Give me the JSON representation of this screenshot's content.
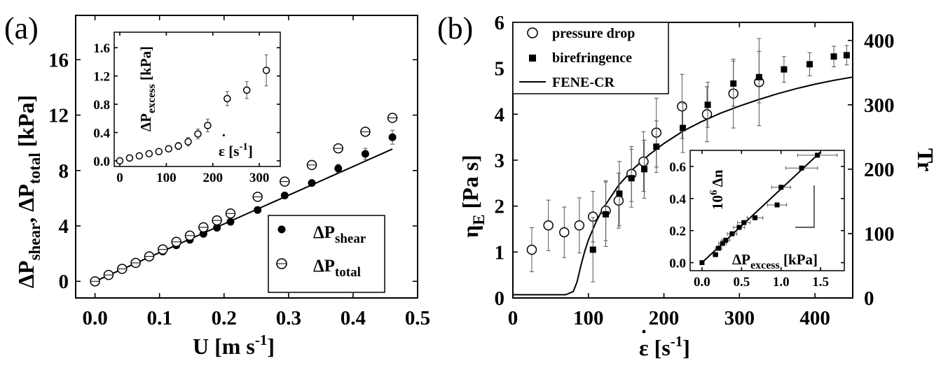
{
  "chart_data": [
    {
      "id": "a",
      "type": "scatter",
      "panel_label": "(a)",
      "xlabel": {
        "main": "U [m s",
        "sup": "-1",
        "end": "]"
      },
      "ylabel": {
        "p1": "ΔP",
        "s1": "shear",
        "p2": ", ΔP",
        "s2": "total",
        "p3": " [kPa]"
      },
      "xlim": [
        -0.03,
        0.5
      ],
      "ylim": [
        -1.2,
        19.2
      ],
      "xticks": [
        "0.0",
        "0.1",
        "0.2",
        "0.3",
        "0.4",
        "0.5"
      ],
      "yticks": [
        "0",
        "4",
        "8",
        "12",
        "16"
      ],
      "legend_position": "bottom-right",
      "series": [
        {
          "name": {
            "p": "ΔP",
            "s": "shear"
          },
          "marker": "filled-circle",
          "x": [
            0.0,
            0.021,
            0.042,
            0.063,
            0.084,
            0.105,
            0.126,
            0.147,
            0.168,
            0.189,
            0.21,
            0.252,
            0.294,
            0.336,
            0.377,
            0.419,
            0.461
          ],
          "y": [
            0.0,
            0.44,
            0.87,
            1.3,
            1.73,
            2.15,
            2.6,
            3.0,
            3.43,
            3.87,
            4.3,
            5.15,
            6.2,
            7.1,
            8.15,
            9.2,
            10.4
          ],
          "yerr": [
            0,
            0,
            0,
            0,
            0,
            0,
            0,
            0,
            0,
            0,
            0,
            0,
            0,
            0,
            0.3,
            0.4,
            0.5
          ]
        },
        {
          "name": {
            "p": "ΔP",
            "s": "total"
          },
          "marker": "open-circle",
          "x": [
            0.0,
            0.021,
            0.042,
            0.063,
            0.084,
            0.105,
            0.126,
            0.147,
            0.168,
            0.189,
            0.21,
            0.252,
            0.294,
            0.336,
            0.377,
            0.419,
            0.461
          ],
          "y": [
            0.0,
            0.46,
            0.9,
            1.33,
            1.8,
            2.3,
            2.85,
            3.3,
            3.9,
            4.4,
            4.9,
            6.1,
            7.2,
            8.4,
            9.6,
            10.8,
            11.8
          ],
          "yerr": [
            0,
            0,
            0,
            0,
            0,
            0,
            0,
            0,
            0,
            0,
            0,
            0,
            0,
            0,
            0,
            0,
            0
          ]
        }
      ],
      "fit_line": {
        "x": [
          0.0,
          0.461
        ],
        "y": [
          0.0,
          9.55
        ]
      },
      "inset": {
        "type": "scatter",
        "xlabel": {
          "main": "ε [s",
          "sup": "-1",
          "end": "]"
        },
        "ylabel": {
          "p1": "ΔP",
          "s1": "excess",
          "p2": " [kPa]"
        },
        "xlim": [
          -12,
          345
        ],
        "ylim": [
          -0.08,
          1.82
        ],
        "xticks": [
          "0",
          "100",
          "200",
          "300"
        ],
        "yticks": [
          "0.0",
          "0.4",
          "0.8",
          "1.2",
          "1.6"
        ],
        "series": [
          {
            "marker": "open-circle",
            "x": [
              0,
              21,
              42,
              63,
              84,
              105,
              126,
              147,
              168,
              189,
              231,
              273,
              315
            ],
            "y": [
              0.0,
              0.04,
              0.07,
              0.1,
              0.13,
              0.17,
              0.21,
              0.27,
              0.38,
              0.5,
              0.88,
              1.0,
              1.28
            ],
            "yerr": [
              0,
              0,
              0,
              0.02,
              0.03,
              0.04,
              0.05,
              0.06,
              0.07,
              0.09,
              0.1,
              0.12,
              0.22
            ]
          }
        ]
      }
    },
    {
      "id": "b",
      "type": "scatter",
      "panel_label": "(b)",
      "xlabel": {
        "main": "ε [s",
        "sup": "-1",
        "end": "]"
      },
      "ylabel": {
        "p1": "η",
        "s1": "E",
        "p2": " [Pa s]"
      },
      "ylabel_right": "Tr",
      "xlim": [
        0,
        450
      ],
      "ylim": [
        0,
        6
      ],
      "y2lim": [
        0,
        428
      ],
      "xticks": [
        "0",
        "100",
        "200",
        "300",
        "400"
      ],
      "yticks": [
        "0",
        "1",
        "2",
        "3",
        "4",
        "5",
        "6"
      ],
      "y2ticks": [
        "0",
        "100",
        "200",
        "300",
        "400"
      ],
      "legend_position": "top-left",
      "series": [
        {
          "name": "pressure drop",
          "marker": "open-circle",
          "axis": "left",
          "x": [
            25,
            47,
            68,
            88,
            106,
            123,
            140,
            157,
            173,
            190,
            224,
            257,
            292,
            326
          ],
          "y": [
            1.05,
            1.58,
            1.43,
            1.58,
            1.77,
            1.9,
            2.12,
            2.7,
            2.97,
            3.6,
            4.17,
            4.0,
            4.45,
            4.7
          ],
          "yerr": [
            0.48,
            0.55,
            0.55,
            0.6,
            0.55,
            0.65,
            0.6,
            0.6,
            0.65,
            0.75,
            0.7,
            0.6,
            0.75,
            0.95
          ]
        },
        {
          "name": "birefringence",
          "marker": "filled-square",
          "axis": "right",
          "x": [
            106,
            123,
            141,
            157,
            174,
            190,
            225,
            258,
            292,
            326,
            359,
            393,
            425,
            442
          ],
          "y": [
            75,
            130,
            162,
            186,
            200,
            235,
            264,
            300,
            333,
            343,
            355,
            363,
            375,
            377
          ],
          "yerr": [
            50,
            50,
            50,
            45,
            45,
            40,
            38,
            35,
            35,
            40,
            20,
            18,
            16,
            15
          ]
        }
      ],
      "fit_line": {
        "name": "FENE-CR",
        "axis": "right",
        "x": [
          0,
          70,
          80,
          85,
          90,
          95,
          100,
          110,
          120,
          140,
          160,
          180,
          200,
          225,
          250,
          275,
          300,
          325,
          350,
          375,
          400,
          425,
          450
        ],
        "y": [
          5,
          5,
          10,
          25,
          50,
          72,
          90,
          118,
          140,
          175,
          201,
          222,
          240,
          259,
          274,
          287,
          298,
          308,
          317,
          325,
          332,
          338,
          343
        ]
      },
      "inset": {
        "type": "scatter",
        "xlabel": {
          "p1": "ΔP",
          "s1": "excess",
          "p2": " [kPa]"
        },
        "ylabel": {
          "p1": "10",
          "sup": "6",
          "p2": " Δn"
        },
        "xlim": [
          -0.15,
          1.8
        ],
        "ylim": [
          -0.05,
          0.7
        ],
        "xticks": [
          "0.0",
          "0.5",
          "1.0",
          "1.5"
        ],
        "yticks": [
          "0.0",
          "0.2",
          "0.4",
          "0.6"
        ],
        "series": [
          {
            "marker": "filled-square",
            "x": [
              0.0,
              0.17,
              0.21,
              0.26,
              0.3,
              0.38,
              0.47,
              0.53,
              0.67,
              0.95,
              1.0,
              1.26,
              1.46
            ],
            "y": [
              0.0,
              0.05,
              0.09,
              0.12,
              0.14,
              0.18,
              0.22,
              0.25,
              0.28,
              0.36,
              0.47,
              0.59,
              0.67
            ],
            "xerr": [
              0.02,
              0.03,
              0.04,
              0.05,
              0.05,
              0.06,
              0.07,
              0.08,
              0.1,
              0.12,
              0.12,
              0.2,
              0.25
            ]
          }
        ],
        "fit_line": {
          "x": [
            0.0,
            1.5
          ],
          "y": [
            0.0,
            0.69
          ]
        }
      }
    }
  ]
}
